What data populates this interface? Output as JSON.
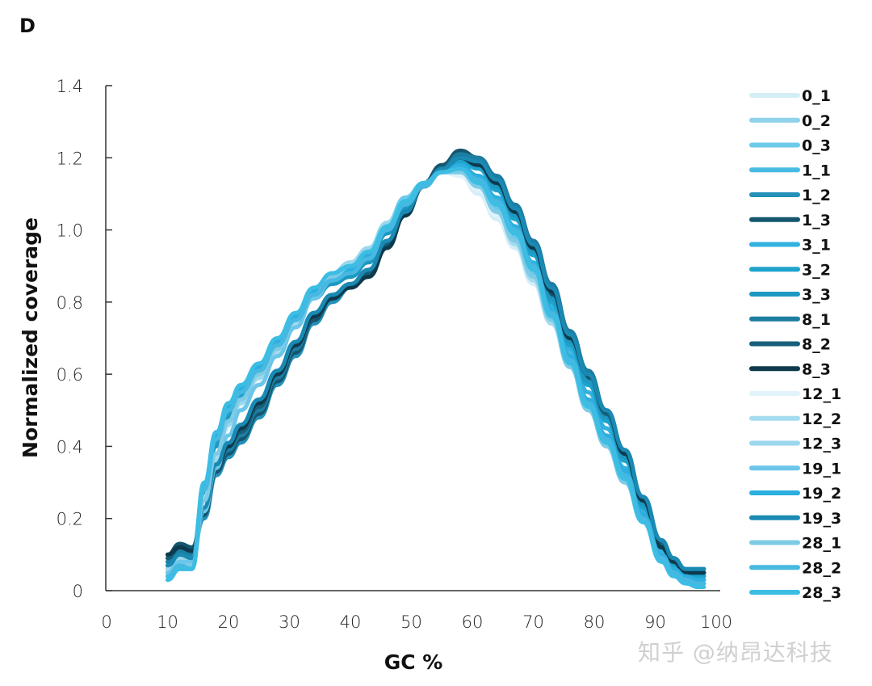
{
  "panel_label": "D",
  "watermark": "知乎 @纳昂达科技",
  "chart_data": {
    "type": "line",
    "title": "",
    "xlabel": "GC %",
    "ylabel": "Normalized coverage",
    "xlim": [
      0,
      100
    ],
    "ylim": [
      0,
      1.4
    ],
    "xticks": [
      "0",
      "10",
      "20",
      "30",
      "40",
      "50",
      "60",
      "70",
      "80",
      "90",
      "100"
    ],
    "yticks": [
      "0",
      "0.2",
      "0.4",
      "0.6",
      "0.8",
      "1.0",
      "1.2",
      "1.4"
    ],
    "grid": false,
    "legend_position": "right",
    "x": [
      10,
      12,
      14,
      16,
      18,
      20,
      22,
      25,
      28,
      31,
      34,
      37,
      40,
      43,
      46,
      49,
      52,
      55,
      58,
      61,
      64,
      67,
      70,
      73,
      76,
      79,
      82,
      85,
      88,
      91,
      93,
      95,
      97,
      98
    ],
    "series": [
      {
        "name": "0_1",
        "color": "#d4eef8",
        "values": [
          0.05,
          0.09,
          0.08,
          0.25,
          0.38,
          0.46,
          0.52,
          0.59,
          0.66,
          0.74,
          0.82,
          0.87,
          0.91,
          0.95,
          1.01,
          1.08,
          1.13,
          1.16,
          1.15,
          1.1,
          1.03,
          0.95,
          0.85,
          0.74,
          0.62,
          0.5,
          0.4,
          0.3,
          0.19,
          0.09,
          0.05,
          0.03,
          0.02,
          0.02
        ]
      },
      {
        "name": "0_2",
        "color": "#8fd2ea",
        "values": [
          0.06,
          0.1,
          0.09,
          0.24,
          0.36,
          0.45,
          0.51,
          0.58,
          0.66,
          0.74,
          0.82,
          0.87,
          0.9,
          0.94,
          1.01,
          1.08,
          1.13,
          1.16,
          1.16,
          1.12,
          1.05,
          0.97,
          0.87,
          0.75,
          0.63,
          0.52,
          0.42,
          0.31,
          0.2,
          0.1,
          0.06,
          0.04,
          0.03,
          0.03
        ]
      },
      {
        "name": "0_3",
        "color": "#6ccbea",
        "values": [
          0.07,
          0.11,
          0.1,
          0.26,
          0.38,
          0.47,
          0.53,
          0.6,
          0.67,
          0.75,
          0.83,
          0.88,
          0.91,
          0.95,
          1.02,
          1.09,
          1.13,
          1.17,
          1.17,
          1.13,
          1.06,
          0.98,
          0.88,
          0.76,
          0.64,
          0.53,
          0.43,
          0.32,
          0.21,
          0.1,
          0.06,
          0.04,
          0.03,
          0.03
        ]
      },
      {
        "name": "1_1",
        "color": "#49bbe3",
        "values": [
          0.08,
          0.12,
          0.1,
          0.28,
          0.41,
          0.49,
          0.55,
          0.61,
          0.68,
          0.76,
          0.83,
          0.88,
          0.9,
          0.94,
          1.01,
          1.08,
          1.13,
          1.17,
          1.18,
          1.15,
          1.08,
          1.0,
          0.9,
          0.78,
          0.66,
          0.55,
          0.45,
          0.34,
          0.22,
          0.11,
          0.07,
          0.05,
          0.04,
          0.04
        ]
      },
      {
        "name": "1_2",
        "color": "#2391b8",
        "values": [
          0.09,
          0.12,
          0.11,
          0.2,
          0.32,
          0.37,
          0.41,
          0.48,
          0.57,
          0.65,
          0.74,
          0.8,
          0.84,
          0.87,
          0.95,
          1.04,
          1.12,
          1.17,
          1.21,
          1.19,
          1.14,
          1.06,
          0.96,
          0.84,
          0.71,
          0.6,
          0.49,
          0.38,
          0.25,
          0.13,
          0.08,
          0.05,
          0.05,
          0.05
        ]
      },
      {
        "name": "1_3",
        "color": "#15566e",
        "values": [
          0.1,
          0.13,
          0.12,
          0.21,
          0.33,
          0.38,
          0.42,
          0.49,
          0.58,
          0.66,
          0.75,
          0.81,
          0.85,
          0.88,
          0.96,
          1.05,
          1.13,
          1.18,
          1.22,
          1.2,
          1.15,
          1.06,
          0.95,
          0.82,
          0.69,
          0.59,
          0.48,
          0.37,
          0.24,
          0.12,
          0.07,
          0.04,
          0.04,
          0.04
        ]
      },
      {
        "name": "3_1",
        "color": "#33b2e0",
        "values": [
          0.05,
          0.08,
          0.07,
          0.28,
          0.42,
          0.5,
          0.55,
          0.62,
          0.69,
          0.76,
          0.83,
          0.87,
          0.89,
          0.93,
          1.0,
          1.07,
          1.12,
          1.16,
          1.18,
          1.15,
          1.09,
          1.01,
          0.91,
          0.79,
          0.67,
          0.55,
          0.45,
          0.34,
          0.22,
          0.11,
          0.07,
          0.05,
          0.04,
          0.04
        ]
      },
      {
        "name": "3_2",
        "color": "#1ea3cc",
        "values": [
          0.06,
          0.09,
          0.08,
          0.27,
          0.41,
          0.49,
          0.54,
          0.61,
          0.68,
          0.75,
          0.82,
          0.86,
          0.88,
          0.92,
          1.0,
          1.07,
          1.12,
          1.16,
          1.19,
          1.17,
          1.11,
          1.03,
          0.93,
          0.8,
          0.68,
          0.57,
          0.47,
          0.36,
          0.23,
          0.12,
          0.07,
          0.05,
          0.04,
          0.04
        ]
      },
      {
        "name": "3_3",
        "color": "#1c98c2",
        "values": [
          0.07,
          0.1,
          0.09,
          0.26,
          0.4,
          0.48,
          0.53,
          0.6,
          0.67,
          0.74,
          0.81,
          0.85,
          0.87,
          0.91,
          0.99,
          1.06,
          1.12,
          1.16,
          1.2,
          1.18,
          1.12,
          1.04,
          0.94,
          0.81,
          0.69,
          0.58,
          0.48,
          0.37,
          0.24,
          0.12,
          0.08,
          0.05,
          0.05,
          0.05
        ]
      },
      {
        "name": "8_1",
        "color": "#1d7ea2",
        "values": [
          0.08,
          0.11,
          0.1,
          0.22,
          0.34,
          0.39,
          0.43,
          0.5,
          0.59,
          0.67,
          0.76,
          0.81,
          0.85,
          0.88,
          0.96,
          1.05,
          1.12,
          1.17,
          1.21,
          1.2,
          1.15,
          1.07,
          0.97,
          0.85,
          0.72,
          0.61,
          0.5,
          0.39,
          0.26,
          0.14,
          0.09,
          0.06,
          0.06,
          0.06
        ]
      },
      {
        "name": "8_2",
        "color": "#155f7a",
        "values": [
          0.09,
          0.12,
          0.11,
          0.23,
          0.35,
          0.4,
          0.44,
          0.51,
          0.6,
          0.68,
          0.77,
          0.82,
          0.85,
          0.88,
          0.96,
          1.05,
          1.12,
          1.17,
          1.2,
          1.19,
          1.14,
          1.06,
          0.96,
          0.84,
          0.71,
          0.6,
          0.49,
          0.38,
          0.25,
          0.13,
          0.08,
          0.05,
          0.05,
          0.05
        ]
      },
      {
        "name": "8_3",
        "color": "#0e3a4d",
        "values": [
          0.1,
          0.12,
          0.11,
          0.22,
          0.34,
          0.4,
          0.45,
          0.52,
          0.6,
          0.68,
          0.76,
          0.81,
          0.84,
          0.87,
          0.95,
          1.04,
          1.12,
          1.17,
          1.2,
          1.18,
          1.13,
          1.05,
          0.95,
          0.83,
          0.7,
          0.6,
          0.5,
          0.38,
          0.25,
          0.12,
          0.08,
          0.05,
          0.05,
          0.05
        ]
      },
      {
        "name": "12_1",
        "color": "#e0f3fa",
        "values": [
          0.04,
          0.07,
          0.07,
          0.24,
          0.37,
          0.45,
          0.51,
          0.58,
          0.66,
          0.74,
          0.82,
          0.87,
          0.9,
          0.94,
          1.01,
          1.08,
          1.13,
          1.16,
          1.15,
          1.11,
          1.04,
          0.96,
          0.86,
          0.75,
          0.63,
          0.51,
          0.41,
          0.31,
          0.2,
          0.1,
          0.05,
          0.03,
          0.02,
          0.02
        ]
      },
      {
        "name": "12_2",
        "color": "#a6dcef",
        "values": [
          0.05,
          0.08,
          0.08,
          0.25,
          0.37,
          0.46,
          0.52,
          0.59,
          0.66,
          0.74,
          0.82,
          0.87,
          0.9,
          0.94,
          1.01,
          1.08,
          1.13,
          1.16,
          1.16,
          1.12,
          1.05,
          0.96,
          0.86,
          0.74,
          0.62,
          0.51,
          0.41,
          0.31,
          0.2,
          0.1,
          0.05,
          0.03,
          0.02,
          0.02
        ]
      },
      {
        "name": "12_3",
        "color": "#9bd7ed",
        "values": [
          0.06,
          0.09,
          0.09,
          0.26,
          0.38,
          0.46,
          0.52,
          0.59,
          0.67,
          0.75,
          0.82,
          0.87,
          0.91,
          0.95,
          1.02,
          1.08,
          1.13,
          1.16,
          1.16,
          1.12,
          1.05,
          0.97,
          0.87,
          0.75,
          0.63,
          0.52,
          0.42,
          0.31,
          0.2,
          0.1,
          0.05,
          0.03,
          0.02,
          0.02
        ]
      },
      {
        "name": "19_1",
        "color": "#6cc6ea",
        "values": [
          0.05,
          0.08,
          0.08,
          0.22,
          0.34,
          0.43,
          0.5,
          0.57,
          0.65,
          0.73,
          0.81,
          0.86,
          0.89,
          0.93,
          1.0,
          1.07,
          1.12,
          1.16,
          1.17,
          1.13,
          1.06,
          0.98,
          0.88,
          0.76,
          0.63,
          0.51,
          0.41,
          0.31,
          0.19,
          0.09,
          0.05,
          0.03,
          0.02,
          0.02
        ]
      },
      {
        "name": "19_2",
        "color": "#2baee0",
        "values": [
          0.03,
          0.06,
          0.06,
          0.29,
          0.43,
          0.51,
          0.56,
          0.62,
          0.69,
          0.76,
          0.83,
          0.87,
          0.89,
          0.93,
          1.0,
          1.07,
          1.12,
          1.16,
          1.18,
          1.15,
          1.09,
          1.01,
          0.9,
          0.78,
          0.65,
          0.53,
          0.43,
          0.33,
          0.21,
          0.1,
          0.06,
          0.04,
          0.03,
          0.03
        ]
      },
      {
        "name": "19_3",
        "color": "#1a8ab3",
        "values": [
          0.07,
          0.1,
          0.09,
          0.23,
          0.35,
          0.41,
          0.46,
          0.53,
          0.61,
          0.69,
          0.77,
          0.82,
          0.85,
          0.89,
          0.97,
          1.05,
          1.12,
          1.17,
          1.2,
          1.19,
          1.14,
          1.06,
          0.96,
          0.84,
          0.71,
          0.6,
          0.5,
          0.39,
          0.26,
          0.14,
          0.09,
          0.06,
          0.06,
          0.06
        ]
      },
      {
        "name": "28_1",
        "color": "#7fcbe6",
        "values": [
          0.04,
          0.07,
          0.07,
          0.25,
          0.38,
          0.47,
          0.53,
          0.6,
          0.67,
          0.75,
          0.82,
          0.87,
          0.9,
          0.94,
          1.01,
          1.08,
          1.13,
          1.16,
          1.16,
          1.12,
          1.05,
          0.97,
          0.87,
          0.75,
          0.62,
          0.5,
          0.4,
          0.3,
          0.19,
          0.09,
          0.05,
          0.03,
          0.02,
          0.02
        ]
      },
      {
        "name": "28_2",
        "color": "#47b8e0",
        "values": [
          0.04,
          0.07,
          0.06,
          0.28,
          0.42,
          0.5,
          0.55,
          0.61,
          0.68,
          0.75,
          0.82,
          0.86,
          0.88,
          0.92,
          1.0,
          1.07,
          1.12,
          1.16,
          1.17,
          1.14,
          1.08,
          1.0,
          0.9,
          0.77,
          0.64,
          0.52,
          0.42,
          0.32,
          0.2,
          0.09,
          0.05,
          0.03,
          0.02,
          0.02
        ]
      },
      {
        "name": "28_3",
        "color": "#3cbde3",
        "values": [
          0.03,
          0.06,
          0.06,
          0.3,
          0.44,
          0.52,
          0.57,
          0.63,
          0.7,
          0.77,
          0.84,
          0.88,
          0.9,
          0.94,
          1.01,
          1.08,
          1.13,
          1.16,
          1.17,
          1.13,
          1.07,
          0.99,
          0.89,
          0.76,
          0.63,
          0.51,
          0.41,
          0.31,
          0.19,
          0.08,
          0.04,
          0.02,
          0.01,
          0.01
        ]
      }
    ]
  }
}
